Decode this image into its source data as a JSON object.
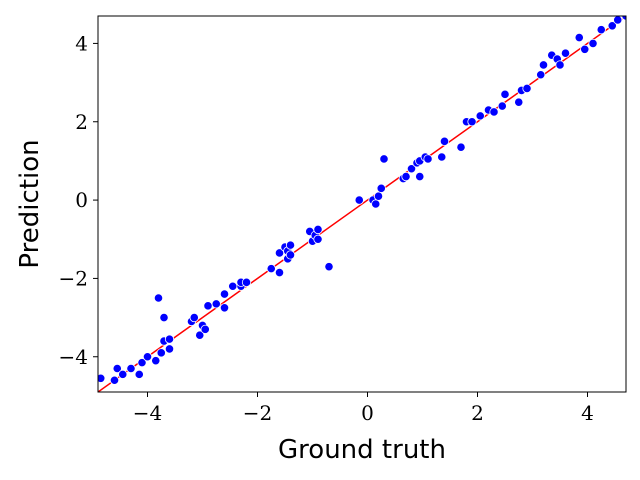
{
  "chart_data": {
    "type": "scatter",
    "title": "",
    "xlabel": "Ground truth",
    "ylabel": "Prediction",
    "xlim": [
      -4.9,
      4.7
    ],
    "ylim": [
      -4.9,
      4.7
    ],
    "xticks": [
      -4,
      -2,
      0,
      2,
      4
    ],
    "yticks": [
      -4,
      -2,
      0,
      2,
      4
    ],
    "xtick_labels": [
      "−4",
      "−2",
      "0",
      "2",
      "4"
    ],
    "ytick_labels": [
      "−4",
      "−2",
      "0",
      "2",
      "4"
    ],
    "grid": false,
    "point_color": "#0000ff",
    "line_color": "#ff0000",
    "reference_line": [
      [
        -4.9,
        -4.9
      ],
      [
        4.7,
        4.7
      ]
    ],
    "points": [
      [
        -4.85,
        -4.55
      ],
      [
        -4.6,
        -4.6
      ],
      [
        -4.55,
        -4.3
      ],
      [
        -4.45,
        -4.45
      ],
      [
        -4.3,
        -4.3
      ],
      [
        -4.15,
        -4.45
      ],
      [
        -4.1,
        -4.15
      ],
      [
        -4.0,
        -4.0
      ],
      [
        -3.85,
        -4.1
      ],
      [
        -3.8,
        -2.5
      ],
      [
        -3.75,
        -3.9
      ],
      [
        -3.7,
        -3.0
      ],
      [
        -3.7,
        -3.6
      ],
      [
        -3.6,
        -3.8
      ],
      [
        -3.6,
        -3.55
      ],
      [
        -3.2,
        -3.1
      ],
      [
        -3.15,
        -3.0
      ],
      [
        -3.05,
        -3.45
      ],
      [
        -3.0,
        -3.2
      ],
      [
        -2.95,
        -3.3
      ],
      [
        -2.9,
        -2.7
      ],
      [
        -2.75,
        -2.65
      ],
      [
        -2.6,
        -2.75
      ],
      [
        -2.6,
        -2.4
      ],
      [
        -2.45,
        -2.2
      ],
      [
        -2.3,
        -2.2
      ],
      [
        -2.3,
        -2.1
      ],
      [
        -2.2,
        -2.1
      ],
      [
        -1.75,
        -1.75
      ],
      [
        -1.6,
        -1.35
      ],
      [
        -1.6,
        -1.85
      ],
      [
        -1.5,
        -1.2
      ],
      [
        -1.45,
        -1.5
      ],
      [
        -1.45,
        -1.3
      ],
      [
        -1.4,
        -1.15
      ],
      [
        -1.4,
        -1.4
      ],
      [
        -1.05,
        -0.8
      ],
      [
        -1.0,
        -1.05
      ],
      [
        -0.95,
        -0.9
      ],
      [
        -0.9,
        -0.75
      ],
      [
        -0.9,
        -1.0
      ],
      [
        -0.7,
        -1.7
      ],
      [
        -0.15,
        0.0
      ],
      [
        0.1,
        0.0
      ],
      [
        0.15,
        -0.1
      ],
      [
        0.2,
        0.1
      ],
      [
        0.25,
        0.3
      ],
      [
        0.3,
        1.05
      ],
      [
        0.65,
        0.55
      ],
      [
        0.7,
        0.6
      ],
      [
        0.8,
        0.8
      ],
      [
        0.9,
        0.95
      ],
      [
        0.95,
        1.0
      ],
      [
        0.95,
        0.6
      ],
      [
        1.05,
        1.1
      ],
      [
        1.1,
        1.05
      ],
      [
        1.35,
        1.1
      ],
      [
        1.4,
        1.5
      ],
      [
        1.7,
        1.35
      ],
      [
        1.8,
        2.0
      ],
      [
        1.9,
        2.0
      ],
      [
        2.05,
        2.15
      ],
      [
        2.2,
        2.3
      ],
      [
        2.3,
        2.25
      ],
      [
        2.45,
        2.4
      ],
      [
        2.5,
        2.7
      ],
      [
        2.75,
        2.5
      ],
      [
        2.8,
        2.8
      ],
      [
        2.9,
        2.85
      ],
      [
        3.15,
        3.2
      ],
      [
        3.2,
        3.45
      ],
      [
        3.35,
        3.7
      ],
      [
        3.45,
        3.6
      ],
      [
        3.5,
        3.45
      ],
      [
        3.6,
        3.75
      ],
      [
        3.85,
        4.15
      ],
      [
        3.95,
        3.85
      ],
      [
        4.1,
        4.0
      ],
      [
        4.25,
        4.35
      ],
      [
        4.45,
        4.45
      ],
      [
        4.55,
        4.6
      ],
      [
        4.7,
        4.7
      ]
    ]
  }
}
